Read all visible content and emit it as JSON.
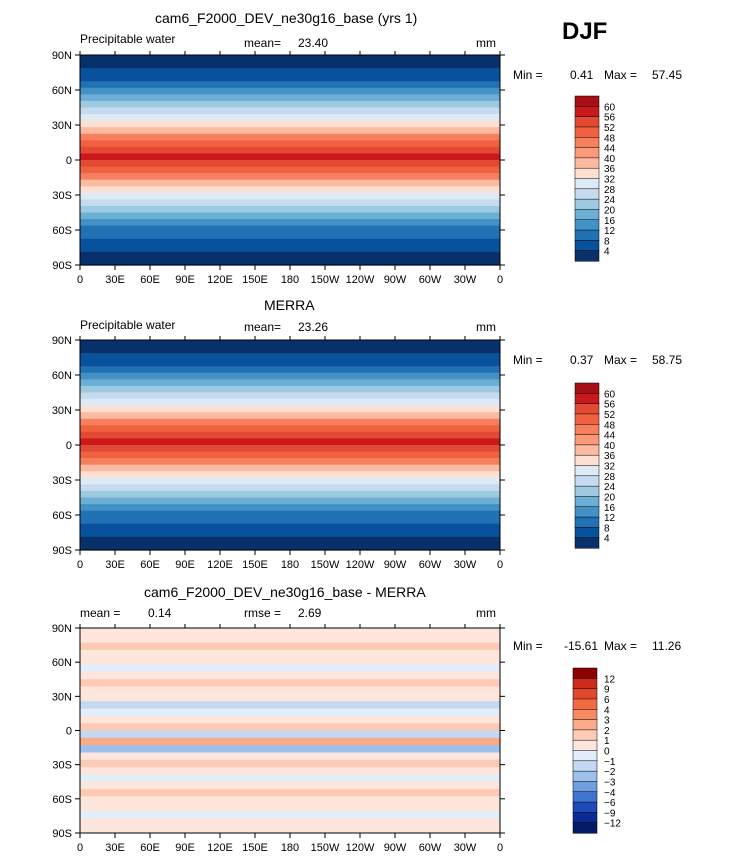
{
  "season": "DJF",
  "chart_data": [
    {
      "type": "heatmap",
      "title": "cam6_F2000_DEV_ne30g16_base (yrs 1)",
      "left_label": "Precipitable water",
      "center_label": "mean=",
      "center_value": "23.40",
      "right_label": "mm",
      "min_label": "Min =",
      "min_value": "0.41",
      "max_label": "Max =",
      "max_value": "57.45",
      "x_ticks": [
        "0",
        "30E",
        "60E",
        "90E",
        "120E",
        "150E",
        "180",
        "150W",
        "120W",
        "90W",
        "60W",
        "30W",
        "0"
      ],
      "y_ticks": [
        "90N",
        "60N",
        "30N",
        "0",
        "30S",
        "60S",
        "90S"
      ],
      "colorbar_levels": [
        "60",
        "56",
        "52",
        "48",
        "44",
        "40",
        "36",
        "32",
        "28",
        "24",
        "20",
        "16",
        "12",
        "8",
        "4"
      ],
      "colorbar_colors": [
        "#a50f15",
        "#cb181d",
        "#e34a33",
        "#f0623f",
        "#f67f5e",
        "#fb9a78",
        "#fcbba1",
        "#fee0d2",
        "#deebf7",
        "#c6dbef",
        "#9ecae1",
        "#6baed6",
        "#4292c6",
        "#2171b5",
        "#08519c",
        "#08306b"
      ]
    },
    {
      "type": "heatmap",
      "title": "MERRA",
      "left_label": "Precipitable water",
      "center_label": "mean=",
      "center_value": "23.26",
      "right_label": "mm",
      "min_label": "Min =",
      "min_value": "0.37",
      "max_label": "Max =",
      "max_value": "58.75",
      "x_ticks": [
        "0",
        "30E",
        "60E",
        "90E",
        "120E",
        "150E",
        "180",
        "150W",
        "120W",
        "90W",
        "60W",
        "30W",
        "0"
      ],
      "y_ticks": [
        "90N",
        "60N",
        "30N",
        "0",
        "30S",
        "60S",
        "90S"
      ],
      "colorbar_levels": [
        "60",
        "56",
        "52",
        "48",
        "44",
        "40",
        "36",
        "32",
        "28",
        "24",
        "20",
        "16",
        "12",
        "8",
        "4"
      ],
      "colorbar_colors": [
        "#a50f15",
        "#cb181d",
        "#e34a33",
        "#f0623f",
        "#f67f5e",
        "#fb9a78",
        "#fcbba1",
        "#fee0d2",
        "#deebf7",
        "#c6dbef",
        "#9ecae1",
        "#6baed6",
        "#4292c6",
        "#2171b5",
        "#08519c",
        "#08306b"
      ]
    },
    {
      "type": "heatmap",
      "title": "cam6_F2000_DEV_ne30g16_base - MERRA",
      "left_label": "mean =",
      "left_value": "0.14",
      "center_label": "rmse =",
      "center_value": "2.69",
      "right_label": "mm",
      "min_label": "Min =",
      "min_value": "-15.61",
      "max_label": "Max =",
      "max_value": "11.26",
      "x_ticks": [
        "0",
        "30E",
        "60E",
        "90E",
        "120E",
        "150E",
        "180",
        "150W",
        "120W",
        "90W",
        "60W",
        "30W",
        "0"
      ],
      "y_ticks": [
        "90N",
        "60N",
        "30N",
        "0",
        "30S",
        "60S",
        "90S"
      ],
      "colorbar_levels": [
        "12",
        "9",
        "6",
        "4",
        "3",
        "2",
        "1",
        "0",
        "−1",
        "−2",
        "−3",
        "−4",
        "−6",
        "−9",
        "−12"
      ],
      "colorbar_colors": [
        "#8b0000",
        "#cc2a1a",
        "#e3482d",
        "#f26a3f",
        "#f78a62",
        "#fbaa8a",
        "#fdcbb5",
        "#fee6dc",
        "#e2eefa",
        "#c3d9f3",
        "#9dc1ec",
        "#6f9ee0",
        "#3f74d2",
        "#1e49b8",
        "#0a2a94",
        "#071a66"
      ]
    }
  ]
}
